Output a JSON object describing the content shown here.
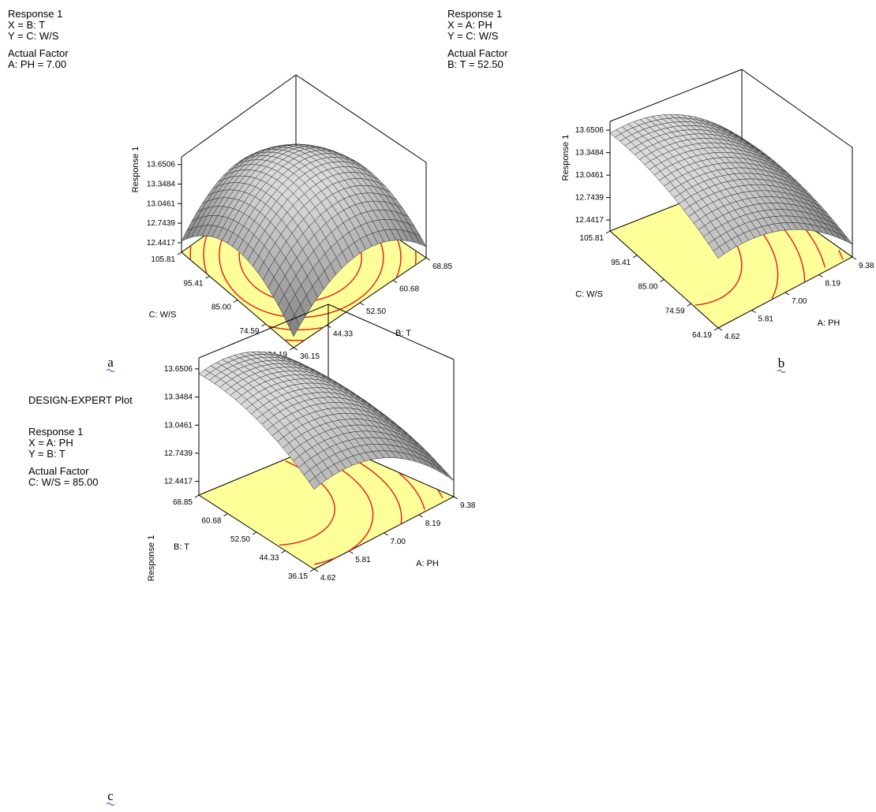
{
  "figure": {
    "header_text": "DESIGN-EXPERT Plot",
    "colors": {
      "floor": "#ffff99",
      "contour": "#e11b1b",
      "surface_light": "#dadada",
      "surface_dark": "#7d7d7d",
      "mesh": "#2a2a2a",
      "frame": "#000000",
      "label_underline": "#3b44c6"
    }
  },
  "chart_data": [
    {
      "type": "surface",
      "panel_label": "a",
      "response": "Response 1",
      "x_factor": "X = B: T",
      "y_factor": "Y = C: W/S",
      "actual_factor_title": "Actual Factor",
      "actual_factor_value": "A: PH = 7.00",
      "zlabel": "Response 1",
      "z_ticks": [
        "13.6506",
        "13.3484",
        "13.0461",
        "12.7439",
        "12.4417"
      ],
      "zlim": [
        12.4417,
        13.6506
      ],
      "x": {
        "label": "B: T",
        "ticks": [
          "36.15",
          "44.33",
          "52.50",
          "60.68",
          "68.85"
        ],
        "range": [
          36.15,
          68.85
        ]
      },
      "y": {
        "label": "C: W/S",
        "ticks": [
          "64.19",
          "74.59",
          "85.00",
          "95.41",
          "105.81"
        ],
        "range": [
          64.19,
          105.81
        ]
      },
      "peak_at": {
        "x": 52.5,
        "y": 85.0
      },
      "grid": true
    },
    {
      "type": "surface",
      "panel_label": "b",
      "response": "Response 1",
      "x_factor": "X = A: PH",
      "y_factor": "Y = C: W/S",
      "actual_factor_title": "Actual Factor",
      "actual_factor_value": "B: T = 52.50",
      "zlabel": "Response 1",
      "z_ticks": [
        "13.6506",
        "13.3484",
        "13.0461",
        "12.7439",
        "12.4417"
      ],
      "zlim": [
        12.4417,
        13.6506
      ],
      "x": {
        "label": "A: PH",
        "ticks": [
          "4.62",
          "5.81",
          "7.00",
          "8.19",
          "9.38"
        ],
        "range": [
          4.62,
          9.38
        ]
      },
      "y": {
        "label": "C: W/S",
        "ticks": [
          "64.19",
          "74.59",
          "85.00",
          "95.41",
          "105.81"
        ],
        "range": [
          64.19,
          105.81
        ]
      },
      "peak_at": {
        "x": 5.4,
        "y": 100.0
      },
      "grid": true
    },
    {
      "type": "surface",
      "panel_label": "c",
      "response": "Response 1",
      "x_factor": "X = A: PH",
      "y_factor": "Y = B: T",
      "actual_factor_title": "Actual Factor",
      "actual_factor_value": "C: W/S = 85.00",
      "zlabel": "Response 1",
      "z_ticks": [
        "13.6506",
        "13.3484",
        "13.0461",
        "12.7439",
        "12.4417"
      ],
      "zlim": [
        12.4417,
        13.6506
      ],
      "x": {
        "label": "A: PH",
        "ticks": [
          "4.62",
          "5.81",
          "7.00",
          "8.19",
          "9.38"
        ],
        "range": [
          4.62,
          9.38
        ]
      },
      "y": {
        "label": "B: T",
        "ticks": [
          "36.15",
          "44.33",
          "52.50",
          "60.68",
          "68.85"
        ],
        "range": [
          36.15,
          68.85
        ]
      },
      "peak_at": {
        "x": 5.6,
        "y": 66.0
      },
      "grid": true
    }
  ]
}
